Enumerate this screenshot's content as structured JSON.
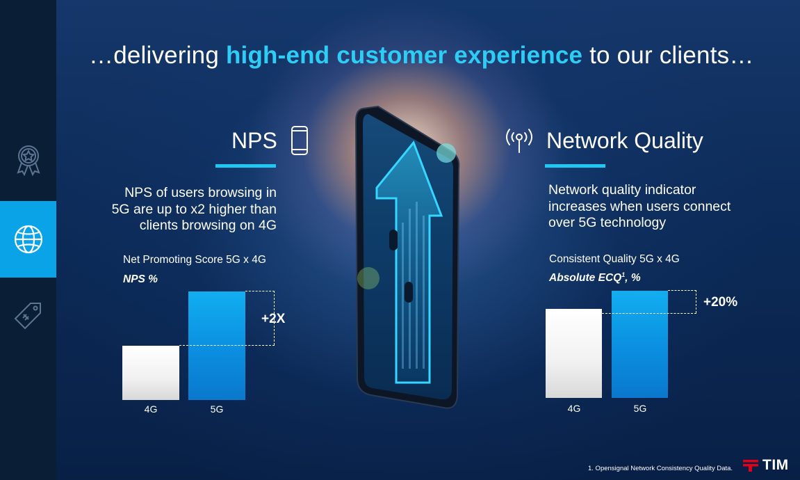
{
  "headline": {
    "prefix": "…delivering ",
    "highlight": "high-end customer experience",
    "suffix": " to our clients…"
  },
  "sidebar": {
    "items": [
      {
        "icon": "award-icon",
        "active": false
      },
      {
        "icon": "globe-icon",
        "active": true
      },
      {
        "icon": "tag-icon",
        "active": false
      }
    ]
  },
  "nps": {
    "title": "NPS",
    "icon": "smartphone-icon",
    "description_lines": [
      "NPS of users browsing in",
      "5G are up to x2 higher than",
      "clients browsing on 4G"
    ],
    "chart_title": "Net Promoting Score 5G x 4G",
    "chart_subtitle": "NPS %",
    "delta": "+2X"
  },
  "network": {
    "title": "Network Quality",
    "icon": "antenna-signal-icon",
    "description_lines": [
      "Network quality indicator",
      "increases when users connect",
      "over 5G technology"
    ],
    "chart_title": "Consistent Quality 5G x 4G",
    "chart_subtitle": "Absolute ECQ",
    "chart_subtitle_sup": "1",
    "chart_subtitle_suffix": ", %",
    "delta": "+20%"
  },
  "chart_data": [
    {
      "type": "bar",
      "title": "Net Promoting Score 5G x 4G",
      "ylabel": "NPS %",
      "categories": [
        "4G",
        "5G"
      ],
      "values": [
        1,
        2
      ],
      "annotation": "+2X",
      "colors": [
        "#f1f1f1",
        "#0b8ee0"
      ]
    },
    {
      "type": "bar",
      "title": "Consistent Quality 5G x 4G",
      "ylabel": "Absolute ECQ1, %",
      "categories": [
        "4G",
        "5G"
      ],
      "values": [
        1,
        1.2
      ],
      "annotation": "+20%",
      "colors": [
        "#f1f1f1",
        "#0b8ee0"
      ]
    }
  ],
  "footnote": "1. Opensignal Network Consistency Quality Data.",
  "brand": {
    "name": "TIM",
    "accent": "#e2001a"
  },
  "colors": {
    "accent": "#2ecdf5",
    "active_rail": "#0aa3e8",
    "bar_blue": "#0b8ee0"
  }
}
